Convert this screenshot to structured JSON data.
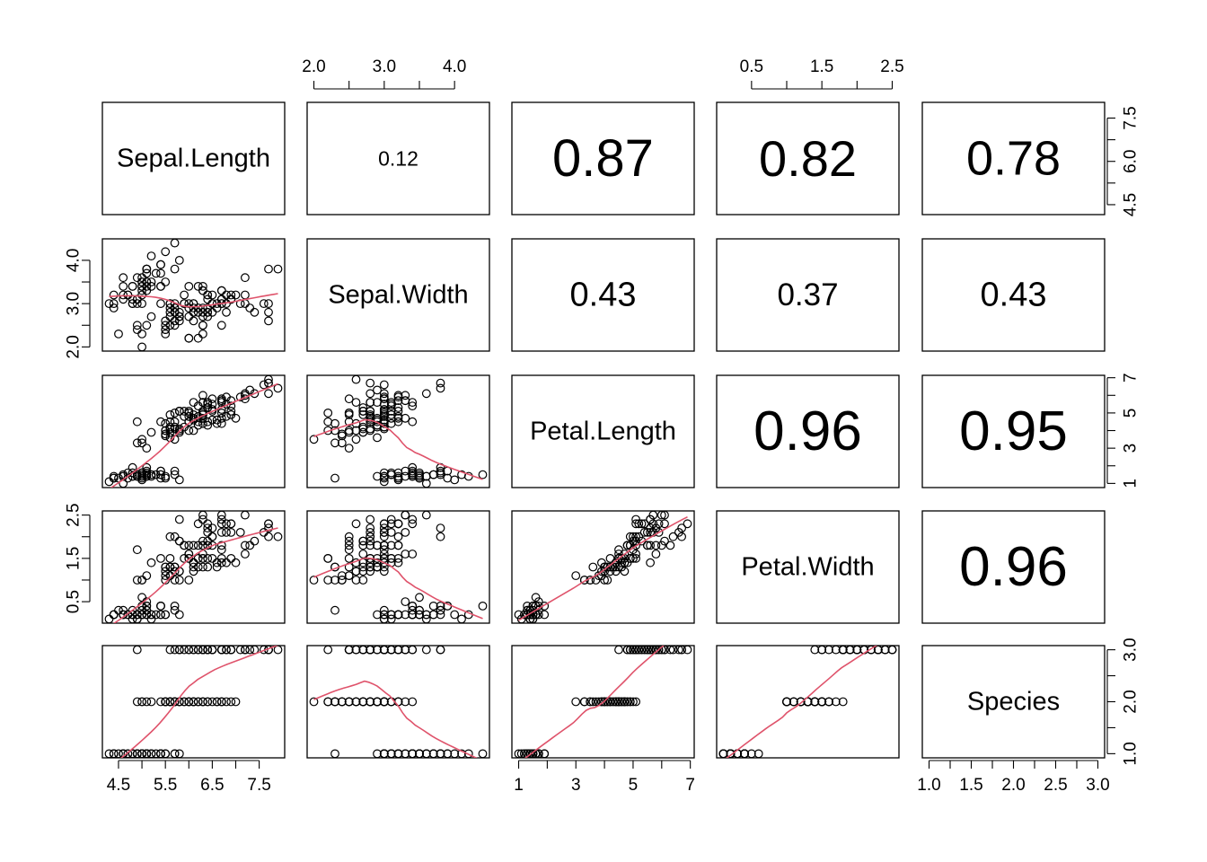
{
  "chart_data": {
    "type": "scatter",
    "subtype": "pairs-matrix",
    "variables": [
      "Sepal.Length",
      "Sepal.Width",
      "Petal.Length",
      "Petal.Width",
      "Species"
    ],
    "ranges": [
      [
        4.3,
        7.9
      ],
      [
        2.0,
        4.4
      ],
      [
        1.0,
        6.9
      ],
      [
        0.1,
        2.5
      ],
      [
        1.0,
        3.0
      ]
    ],
    "axis_ticks": [
      [
        "4.5",
        "5.5",
        "6.5",
        "7.5"
      ],
      [
        "2.0",
        "3.0",
        "4.0"
      ],
      [
        "1",
        "3",
        "5",
        "7"
      ],
      [
        "0.5",
        "1.5",
        "2.5"
      ],
      [
        "1.0",
        "1.5",
        "2.0",
        "2.5",
        "3.0"
      ]
    ],
    "left_ticks": [
      [
        "4.5",
        "6.0",
        "7.5"
      ],
      [
        "2.0",
        "3.0",
        "4.0"
      ],
      [
        "1",
        "3",
        "5",
        "7"
      ],
      [
        "0.5",
        "1.5",
        "2.5"
      ],
      [
        "1.0",
        "2.0",
        "3.0"
      ]
    ],
    "correlations": [
      {
        "row": 0,
        "col": 1,
        "label": "0.12"
      },
      {
        "row": 0,
        "col": 2,
        "label": "0.87"
      },
      {
        "row": 0,
        "col": 3,
        "label": "0.82"
      },
      {
        "row": 0,
        "col": 4,
        "label": "0.78"
      },
      {
        "row": 1,
        "col": 2,
        "label": "0.43"
      },
      {
        "row": 1,
        "col": 3,
        "label": "0.37"
      },
      {
        "row": 1,
        "col": 4,
        "label": "0.43"
      },
      {
        "row": 2,
        "col": 3,
        "label": "0.96"
      },
      {
        "row": 2,
        "col": 4,
        "label": "0.95"
      },
      {
        "row": 3,
        "col": 4,
        "label": "0.96"
      }
    ],
    "colors": {
      "points": "#000000",
      "smooth_line": "#DF536B"
    },
    "observations": [
      [
        5.1,
        3.5,
        1.4,
        0.2,
        1
      ],
      [
        4.9,
        3.0,
        1.4,
        0.2,
        1
      ],
      [
        4.7,
        3.2,
        1.3,
        0.2,
        1
      ],
      [
        4.6,
        3.1,
        1.5,
        0.2,
        1
      ],
      [
        5.0,
        3.6,
        1.4,
        0.2,
        1
      ],
      [
        5.4,
        3.9,
        1.7,
        0.4,
        1
      ],
      [
        4.6,
        3.4,
        1.4,
        0.3,
        1
      ],
      [
        5.0,
        3.4,
        1.5,
        0.2,
        1
      ],
      [
        4.4,
        2.9,
        1.4,
        0.2,
        1
      ],
      [
        4.9,
        3.1,
        1.5,
        0.1,
        1
      ],
      [
        5.4,
        3.7,
        1.5,
        0.2,
        1
      ],
      [
        4.8,
        3.4,
        1.6,
        0.2,
        1
      ],
      [
        4.8,
        3.0,
        1.4,
        0.1,
        1
      ],
      [
        4.3,
        3.0,
        1.1,
        0.1,
        1
      ],
      [
        5.8,
        4.0,
        1.2,
        0.2,
        1
      ],
      [
        5.7,
        4.4,
        1.5,
        0.4,
        1
      ],
      [
        5.4,
        3.9,
        1.3,
        0.4,
        1
      ],
      [
        5.1,
        3.5,
        1.4,
        0.3,
        1
      ],
      [
        5.7,
        3.8,
        1.7,
        0.3,
        1
      ],
      [
        5.1,
        3.8,
        1.5,
        0.3,
        1
      ],
      [
        5.4,
        3.4,
        1.7,
        0.2,
        1
      ],
      [
        5.1,
        3.7,
        1.5,
        0.4,
        1
      ],
      [
        4.6,
        3.6,
        1.0,
        0.2,
        1
      ],
      [
        5.1,
        3.3,
        1.7,
        0.5,
        1
      ],
      [
        4.8,
        3.4,
        1.9,
        0.2,
        1
      ],
      [
        5.0,
        3.0,
        1.6,
        0.2,
        1
      ],
      [
        5.0,
        3.4,
        1.6,
        0.4,
        1
      ],
      [
        5.2,
        3.5,
        1.5,
        0.2,
        1
      ],
      [
        5.2,
        3.4,
        1.4,
        0.2,
        1
      ],
      [
        4.7,
        3.2,
        1.6,
        0.2,
        1
      ],
      [
        4.8,
        3.1,
        1.6,
        0.2,
        1
      ],
      [
        5.4,
        3.4,
        1.5,
        0.4,
        1
      ],
      [
        5.2,
        4.1,
        1.5,
        0.1,
        1
      ],
      [
        5.5,
        4.2,
        1.4,
        0.2,
        1
      ],
      [
        4.9,
        3.1,
        1.5,
        0.2,
        1
      ],
      [
        5.0,
        3.2,
        1.2,
        0.2,
        1
      ],
      [
        5.5,
        3.5,
        1.3,
        0.2,
        1
      ],
      [
        4.9,
        3.6,
        1.4,
        0.1,
        1
      ],
      [
        4.4,
        3.0,
        1.3,
        0.2,
        1
      ],
      [
        5.1,
        3.4,
        1.5,
        0.2,
        1
      ],
      [
        5.0,
        3.5,
        1.3,
        0.3,
        1
      ],
      [
        4.5,
        2.3,
        1.3,
        0.3,
        1
      ],
      [
        4.4,
        3.2,
        1.3,
        0.2,
        1
      ],
      [
        5.0,
        3.5,
        1.6,
        0.6,
        1
      ],
      [
        5.1,
        3.8,
        1.9,
        0.4,
        1
      ],
      [
        4.8,
        3.0,
        1.4,
        0.3,
        1
      ],
      [
        5.1,
        3.8,
        1.6,
        0.2,
        1
      ],
      [
        4.6,
        3.2,
        1.4,
        0.2,
        1
      ],
      [
        5.3,
        3.7,
        1.5,
        0.2,
        1
      ],
      [
        5.0,
        3.3,
        1.4,
        0.2,
        1
      ],
      [
        7.0,
        3.2,
        4.7,
        1.4,
        2
      ],
      [
        6.4,
        3.2,
        4.5,
        1.5,
        2
      ],
      [
        6.9,
        3.1,
        4.9,
        1.5,
        2
      ],
      [
        5.5,
        2.3,
        4.0,
        1.3,
        2
      ],
      [
        6.5,
        2.8,
        4.6,
        1.5,
        2
      ],
      [
        5.7,
        2.8,
        4.5,
        1.3,
        2
      ],
      [
        6.3,
        3.3,
        4.7,
        1.6,
        2
      ],
      [
        4.9,
        2.4,
        3.3,
        1.0,
        2
      ],
      [
        6.6,
        2.9,
        4.6,
        1.3,
        2
      ],
      [
        5.2,
        2.7,
        3.9,
        1.4,
        2
      ],
      [
        5.0,
        2.0,
        3.5,
        1.0,
        2
      ],
      [
        5.9,
        3.0,
        4.2,
        1.5,
        2
      ],
      [
        6.0,
        2.2,
        4.0,
        1.0,
        2
      ],
      [
        6.1,
        2.9,
        4.7,
        1.4,
        2
      ],
      [
        5.6,
        2.9,
        3.6,
        1.3,
        2
      ],
      [
        6.7,
        3.1,
        4.4,
        1.4,
        2
      ],
      [
        5.6,
        3.0,
        4.5,
        1.5,
        2
      ],
      [
        5.8,
        2.7,
        4.1,
        1.0,
        2
      ],
      [
        6.2,
        2.2,
        4.5,
        1.5,
        2
      ],
      [
        5.6,
        2.5,
        3.9,
        1.1,
        2
      ],
      [
        5.9,
        3.2,
        4.8,
        1.8,
        2
      ],
      [
        6.1,
        2.8,
        4.0,
        1.3,
        2
      ],
      [
        6.3,
        2.5,
        4.9,
        1.5,
        2
      ],
      [
        6.1,
        2.8,
        4.7,
        1.2,
        2
      ],
      [
        6.4,
        2.9,
        4.3,
        1.3,
        2
      ],
      [
        6.6,
        3.0,
        4.4,
        1.4,
        2
      ],
      [
        6.8,
        2.8,
        4.8,
        1.4,
        2
      ],
      [
        6.7,
        3.0,
        5.0,
        1.7,
        2
      ],
      [
        6.0,
        2.9,
        4.5,
        1.5,
        2
      ],
      [
        5.7,
        2.6,
        3.5,
        1.0,
        2
      ],
      [
        5.5,
        2.4,
        3.8,
        1.1,
        2
      ],
      [
        5.5,
        2.4,
        3.7,
        1.0,
        2
      ],
      [
        5.8,
        2.7,
        3.9,
        1.2,
        2
      ],
      [
        6.0,
        2.7,
        5.1,
        1.6,
        2
      ],
      [
        5.4,
        3.0,
        4.5,
        1.5,
        2
      ],
      [
        6.0,
        3.4,
        4.5,
        1.6,
        2
      ],
      [
        6.7,
        3.1,
        4.7,
        1.5,
        2
      ],
      [
        6.3,
        2.3,
        4.4,
        1.3,
        2
      ],
      [
        5.6,
        3.0,
        4.1,
        1.3,
        2
      ],
      [
        5.5,
        2.5,
        4.0,
        1.3,
        2
      ],
      [
        5.5,
        2.6,
        4.4,
        1.2,
        2
      ],
      [
        6.1,
        3.0,
        4.6,
        1.4,
        2
      ],
      [
        5.8,
        2.6,
        4.0,
        1.2,
        2
      ],
      [
        5.0,
        2.3,
        3.3,
        1.0,
        2
      ],
      [
        5.6,
        2.7,
        4.2,
        1.3,
        2
      ],
      [
        5.7,
        3.0,
        4.2,
        1.2,
        2
      ],
      [
        5.7,
        2.9,
        4.2,
        1.3,
        2
      ],
      [
        6.2,
        2.9,
        4.3,
        1.3,
        2
      ],
      [
        5.1,
        2.5,
        3.0,
        1.1,
        2
      ],
      [
        5.7,
        2.8,
        4.1,
        1.3,
        2
      ],
      [
        6.3,
        3.3,
        6.0,
        2.5,
        3
      ],
      [
        5.8,
        2.7,
        5.1,
        1.9,
        3
      ],
      [
        7.1,
        3.0,
        5.9,
        2.1,
        3
      ],
      [
        6.3,
        2.9,
        5.6,
        1.8,
        3
      ],
      [
        6.5,
        3.0,
        5.8,
        2.2,
        3
      ],
      [
        7.6,
        3.0,
        6.6,
        2.1,
        3
      ],
      [
        4.9,
        2.5,
        4.5,
        1.7,
        3
      ],
      [
        7.3,
        2.9,
        6.3,
        1.8,
        3
      ],
      [
        6.7,
        2.5,
        5.8,
        1.8,
        3
      ],
      [
        7.2,
        3.6,
        6.1,
        2.5,
        3
      ],
      [
        6.5,
        3.2,
        5.1,
        2.0,
        3
      ],
      [
        6.4,
        2.7,
        5.3,
        1.9,
        3
      ],
      [
        6.8,
        3.0,
        5.5,
        2.1,
        3
      ],
      [
        5.7,
        2.5,
        5.0,
        2.0,
        3
      ],
      [
        5.8,
        2.8,
        5.1,
        2.4,
        3
      ],
      [
        6.4,
        3.2,
        5.3,
        2.3,
        3
      ],
      [
        6.5,
        3.0,
        5.5,
        1.8,
        3
      ],
      [
        7.7,
        3.8,
        6.7,
        2.2,
        3
      ],
      [
        7.7,
        2.6,
        6.9,
        2.3,
        3
      ],
      [
        6.0,
        2.2,
        5.0,
        1.5,
        3
      ],
      [
        6.9,
        3.2,
        5.7,
        2.3,
        3
      ],
      [
        5.6,
        2.8,
        4.9,
        2.0,
        3
      ],
      [
        7.7,
        2.8,
        6.7,
        2.0,
        3
      ],
      [
        6.3,
        2.7,
        4.9,
        1.8,
        3
      ],
      [
        6.7,
        3.3,
        5.7,
        2.1,
        3
      ],
      [
        7.2,
        3.2,
        6.0,
        1.8,
        3
      ],
      [
        6.2,
        2.8,
        4.8,
        1.8,
        3
      ],
      [
        6.1,
        3.0,
        4.9,
        1.8,
        3
      ],
      [
        6.4,
        2.8,
        5.6,
        2.1,
        3
      ],
      [
        7.2,
        3.0,
        5.8,
        1.6,
        3
      ],
      [
        7.4,
        2.8,
        6.1,
        1.9,
        3
      ],
      [
        7.9,
        3.8,
        6.4,
        2.0,
        3
      ],
      [
        6.4,
        2.8,
        5.6,
        2.2,
        3
      ],
      [
        6.3,
        2.8,
        5.1,
        1.5,
        3
      ],
      [
        6.1,
        2.6,
        5.6,
        1.4,
        3
      ],
      [
        7.7,
        3.0,
        6.1,
        2.3,
        3
      ],
      [
        6.3,
        3.4,
        5.6,
        2.4,
        3
      ],
      [
        6.4,
        3.1,
        5.5,
        1.8,
        3
      ],
      [
        6.0,
        3.0,
        4.8,
        1.8,
        3
      ],
      [
        6.9,
        3.1,
        5.4,
        2.1,
        3
      ],
      [
        6.7,
        3.1,
        5.6,
        2.4,
        3
      ],
      [
        6.9,
        3.1,
        5.1,
        2.3,
        3
      ],
      [
        5.8,
        2.7,
        5.1,
        1.9,
        3
      ],
      [
        6.8,
        3.2,
        5.9,
        2.3,
        3
      ],
      [
        6.7,
        3.3,
        5.7,
        2.5,
        3
      ],
      [
        6.7,
        3.0,
        5.2,
        2.3,
        3
      ],
      [
        6.3,
        2.5,
        5.0,
        1.9,
        3
      ],
      [
        6.5,
        3.0,
        5.2,
        2.0,
        3
      ],
      [
        6.2,
        3.4,
        5.4,
        2.3,
        3
      ],
      [
        5.9,
        3.0,
        5.1,
        1.8,
        3
      ]
    ]
  }
}
